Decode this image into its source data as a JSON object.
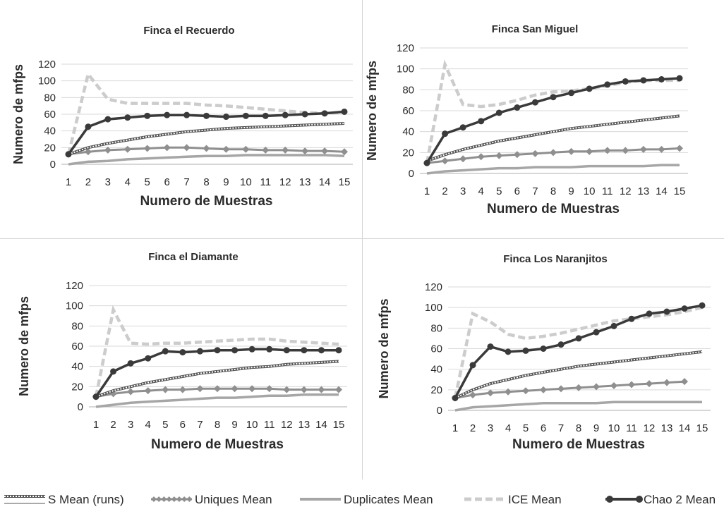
{
  "chart_data": [
    {
      "type": "line",
      "title": "Finca el Recuerdo",
      "xlabel": "Numero de Muestras",
      "ylabel": "Numero de mfps",
      "categories": [
        1,
        2,
        3,
        4,
        5,
        6,
        7,
        8,
        9,
        10,
        11,
        12,
        13,
        14,
        15
      ],
      "ylim": [
        0,
        120
      ],
      "yticks": [
        0,
        20,
        40,
        60,
        80,
        100,
        120
      ],
      "grid": true,
      "series": [
        {
          "name": "S Mean (runs)",
          "values": [
            12,
            20,
            25,
            29,
            33,
            36,
            39,
            41,
            43,
            44,
            45,
            46,
            47,
            48,
            49
          ]
        },
        {
          "name": "Uniques Mean",
          "values": [
            12,
            15,
            17,
            18,
            19,
            20,
            20,
            19,
            18,
            18,
            17,
            17,
            16,
            16,
            15
          ]
        },
        {
          "name": "Duplicates Mean",
          "values": [
            0,
            3,
            4,
            6,
            7,
            8,
            9,
            10,
            10,
            11,
            11,
            11,
            11,
            11,
            10
          ]
        },
        {
          "name": "ICE Mean",
          "values": [
            12,
            108,
            78,
            73,
            73,
            73,
            73,
            71,
            70,
            68,
            66,
            64,
            62,
            61,
            62
          ]
        },
        {
          "name": "Chao 2 Mean",
          "values": [
            12,
            45,
            54,
            56,
            58,
            59,
            59,
            58,
            57,
            58,
            58,
            59,
            60,
            61,
            63
          ]
        }
      ]
    },
    {
      "type": "line",
      "title": "Finca San Miguel",
      "xlabel": "Numero de Muestras",
      "ylabel": "Numero de mfps",
      "categories": [
        1,
        2,
        3,
        4,
        5,
        6,
        7,
        8,
        9,
        10,
        11,
        12,
        13,
        14,
        15
      ],
      "ylim": [
        0,
        120
      ],
      "yticks": [
        0,
        20,
        40,
        60,
        80,
        100,
        120
      ],
      "grid": true,
      "series": [
        {
          "name": "S Mean (runs)",
          "values": [
            12,
            18,
            23,
            27,
            31,
            34,
            37,
            40,
            43,
            45,
            47,
            49,
            51,
            53,
            55
          ]
        },
        {
          "name": "Uniques Mean",
          "values": [
            10,
            12,
            14,
            16,
            17,
            18,
            19,
            20,
            21,
            21,
            22,
            22,
            23,
            23,
            24
          ]
        },
        {
          "name": "Duplicates Mean",
          "values": [
            0,
            2,
            3,
            4,
            5,
            5,
            6,
            6,
            6,
            7,
            7,
            7,
            7,
            8,
            8
          ]
        },
        {
          "name": "ICE Mean",
          "values": [
            10,
            104,
            66,
            64,
            66,
            70,
            75,
            78,
            79,
            81,
            84,
            87,
            89,
            89,
            89
          ]
        },
        {
          "name": "Chao 2 Mean",
          "values": [
            10,
            38,
            44,
            50,
            58,
            63,
            68,
            73,
            77,
            81,
            85,
            88,
            89,
            90,
            91
          ]
        }
      ]
    },
    {
      "type": "line",
      "title": "Finca el Diamante",
      "xlabel": "Numero de Muestras",
      "ylabel": "Numero de mfps",
      "categories": [
        1,
        2,
        3,
        4,
        5,
        6,
        7,
        8,
        9,
        10,
        11,
        12,
        13,
        14,
        15
      ],
      "ylim": [
        0,
        120
      ],
      "yticks": [
        0,
        20,
        40,
        60,
        80,
        100,
        120
      ],
      "grid": true,
      "series": [
        {
          "name": "S Mean (runs)",
          "values": [
            10,
            16,
            20,
            24,
            27,
            30,
            33,
            35,
            37,
            39,
            40,
            42,
            43,
            44,
            45
          ]
        },
        {
          "name": "Uniques Mean",
          "values": [
            10,
            13,
            15,
            16,
            17,
            17,
            18,
            18,
            18,
            18,
            18,
            17,
            17,
            17,
            17
          ]
        },
        {
          "name": "Duplicates Mean",
          "values": [
            0,
            2,
            4,
            5,
            6,
            7,
            8,
            9,
            9,
            10,
            11,
            11,
            12,
            12,
            12
          ]
        },
        {
          "name": "ICE Mean",
          "values": [
            10,
            96,
            63,
            62,
            63,
            63,
            64,
            65,
            66,
            67,
            67,
            65,
            64,
            63,
            62
          ]
        },
        {
          "name": "Chao 2 Mean",
          "values": [
            10,
            35,
            43,
            48,
            55,
            54,
            55,
            56,
            56,
            57,
            57,
            56,
            56,
            56,
            56
          ]
        }
      ]
    },
    {
      "type": "line",
      "title": "Finca Los Naranjitos",
      "xlabel": "Numero de Muestras",
      "ylabel": "Numero de mfps",
      "categories": [
        1,
        2,
        3,
        4,
        5,
        6,
        7,
        8,
        9,
        10,
        11,
        12,
        13,
        14,
        15
      ],
      "ylim": [
        0,
        120
      ],
      "yticks": [
        0,
        20,
        40,
        60,
        80,
        100,
        120
      ],
      "grid": true,
      "series": [
        {
          "name": "S Mean (runs)",
          "values": [
            12,
            20,
            26,
            30,
            34,
            37,
            40,
            43,
            45,
            47,
            49,
            51,
            53,
            55,
            57
          ]
        },
        {
          "name": "Uniques Mean",
          "values": [
            12,
            15,
            17,
            18,
            19,
            20,
            21,
            22,
            23,
            24,
            25,
            26,
            27,
            28,
            null
          ]
        },
        {
          "name": "Duplicates Mean",
          "values": [
            0,
            3,
            4,
            5,
            6,
            7,
            7,
            7,
            7,
            8,
            8,
            8,
            8,
            8,
            8
          ]
        },
        {
          "name": "ICE Mean",
          "values": [
            12,
            94,
            86,
            74,
            70,
            72,
            75,
            79,
            83,
            87,
            89,
            91,
            93,
            96,
            100
          ]
        },
        {
          "name": "Chao 2 Mean",
          "values": [
            12,
            44,
            62,
            57,
            58,
            60,
            64,
            70,
            76,
            82,
            89,
            94,
            96,
            99,
            102
          ]
        }
      ]
    }
  ],
  "legend": [
    {
      "label": "S Mean (runs)",
      "style": "smean"
    },
    {
      "label": "Uniques Mean",
      "style": "uniques"
    },
    {
      "label": "Duplicates Mean",
      "style": "duplicates"
    },
    {
      "label": "ICE Mean",
      "style": "ice"
    },
    {
      "label": "Chao 2 Mean",
      "style": "chao"
    }
  ],
  "colors": {
    "smean": "#555555",
    "uniques": "#8f8f8f",
    "duplicates": "#a6a6a6",
    "ice": "#cccccc",
    "chao": "#3a3a3a",
    "grid": "#d9d9d9",
    "text": "#2b2b2b"
  }
}
